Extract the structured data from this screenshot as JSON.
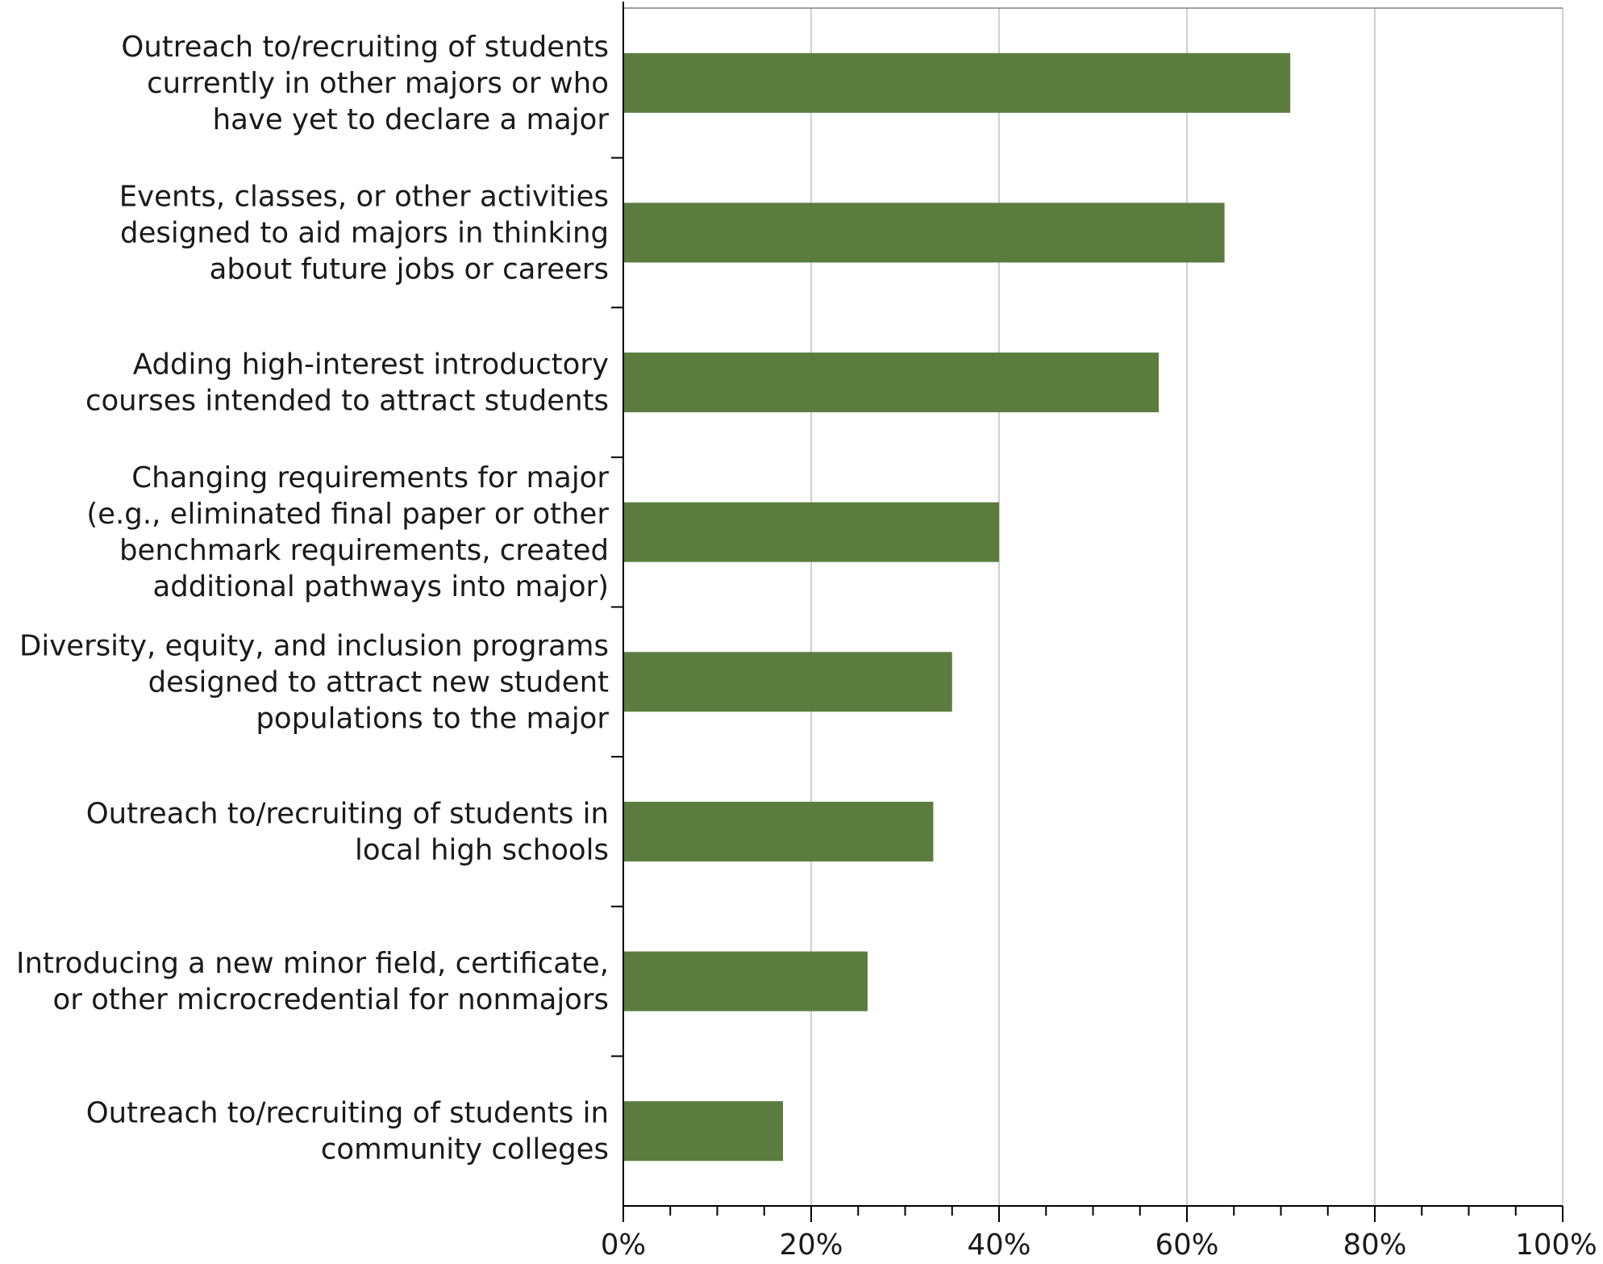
{
  "chart_data": {
    "type": "bar",
    "orientation": "horizontal",
    "categories": [
      [
        "Outreach to/recruiting of students",
        "currently in other majors or who",
        "have yet to declare a major"
      ],
      [
        "Events, classes, or other activities",
        "designed to aid majors in thinking",
        "about future jobs or careers"
      ],
      [
        "Adding high-interest introductory",
        "courses intended to attract students"
      ],
      [
        "Changing requirements for major",
        "(e.g., eliminated final paper or other",
        "benchmark requirements, created",
        "additional pathways into major)"
      ],
      [
        "Diversity, equity, and inclusion programs",
        "designed to attract new student",
        "populations to the major"
      ],
      [
        "Outreach to/recruiting of students in",
        "local high schools"
      ],
      [
        "Introducing a new minor field, certificate,",
        "or other microcredential for nonmajors"
      ],
      [
        "Outreach to/recruiting of students in",
        "community colleges"
      ]
    ],
    "values": [
      71,
      64,
      57,
      40,
      35,
      33,
      26,
      17
    ],
    "xlim": [
      0,
      100
    ],
    "x_ticks": [
      "0%",
      "20%",
      "40%",
      "60%",
      "80%",
      "100%"
    ],
    "x_tick_values": [
      0,
      20,
      40,
      60,
      80,
      100
    ],
    "grid": true,
    "bar_color": "#5b7c3e",
    "title": "",
    "xlabel": "",
    "ylabel": ""
  }
}
